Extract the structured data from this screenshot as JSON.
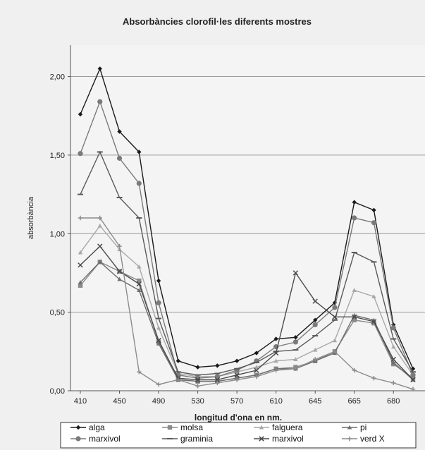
{
  "chart_data": {
    "type": "line",
    "title": "Absorbàncies clorofil·les diferents mostres",
    "xlabel": "longitud d'ona en nm.",
    "ylabel": "absorbància",
    "x": [
      410,
      430,
      450,
      470,
      490,
      510,
      530,
      550,
      570,
      590,
      610,
      630,
      645,
      655,
      665,
      675,
      680,
      690
    ],
    "x_tick_labels": [
      "410",
      "450",
      "490",
      "530",
      "570",
      "610",
      "645",
      "665",
      "680"
    ],
    "x_tick_positions": [
      410,
      450,
      490,
      530,
      570,
      610,
      645,
      665,
      680
    ],
    "y_tick_labels": [
      "0,00",
      "0,50",
      "1,00",
      "1,50",
      "2,00"
    ],
    "ylim": [
      0,
      2.2
    ],
    "grid": "horizontal",
    "legend_position": "bottom",
    "series": [
      {
        "name": "alga",
        "color": "#1a1a1a",
        "marker": "diamond",
        "values": [
          1.76,
          2.05,
          1.65,
          1.52,
          0.7,
          0.19,
          0.15,
          0.16,
          0.19,
          0.24,
          0.33,
          0.34,
          0.45,
          0.56,
          1.2,
          1.15,
          0.42,
          0.14
        ]
      },
      {
        "name": "molsa",
        "color": "#8a8a8a",
        "marker": "square",
        "values": [
          0.67,
          0.82,
          0.76,
          0.7,
          0.31,
          0.07,
          0.06,
          0.06,
          0.08,
          0.1,
          0.14,
          0.15,
          0.19,
          0.25,
          0.45,
          0.43,
          0.17,
          0.08
        ]
      },
      {
        "name": "falguera",
        "color": "#a8a8a8",
        "marker": "triangle",
        "values": [
          0.88,
          1.05,
          0.9,
          0.79,
          0.4,
          0.11,
          0.09,
          0.09,
          0.12,
          0.15,
          0.19,
          0.2,
          0.26,
          0.32,
          0.64,
          0.6,
          0.28,
          0.1
        ]
      },
      {
        "name": "pi",
        "color": "#6e6e6e",
        "marker": "triangle",
        "values": [
          0.69,
          0.82,
          0.71,
          0.64,
          0.3,
          0.07,
          0.06,
          0.06,
          0.08,
          0.1,
          0.14,
          0.14,
          0.19,
          0.24,
          0.48,
          0.45,
          0.18,
          0.07
        ]
      },
      {
        "name": "marxivol",
        "color": "#7a7a7a",
        "marker": "circle",
        "values": [
          1.51,
          1.84,
          1.48,
          1.32,
          0.56,
          0.1,
          0.08,
          0.09,
          0.13,
          0.19,
          0.28,
          0.31,
          0.42,
          0.53,
          1.1,
          1.07,
          0.4,
          0.1
        ]
      },
      {
        "name": "graminia",
        "color": "#5a5a5a",
        "marker": "dash",
        "values": [
          1.25,
          1.52,
          1.23,
          1.1,
          0.46,
          0.12,
          0.1,
          0.11,
          0.14,
          0.18,
          0.25,
          0.26,
          0.35,
          0.45,
          0.88,
          0.82,
          0.33,
          0.12
        ]
      },
      {
        "name": "marxivol",
        "color": "#4a4a4a",
        "marker": "x",
        "values": [
          0.8,
          0.92,
          0.76,
          0.68,
          0.32,
          0.08,
          0.07,
          0.07,
          0.1,
          0.13,
          0.24,
          0.75,
          0.57,
          0.47,
          0.47,
          0.44,
          0.2,
          0.07
        ]
      },
      {
        "name": "verd X",
        "color": "#8c8c8c",
        "marker": "plus",
        "values": [
          1.1,
          1.1,
          0.92,
          0.12,
          0.04,
          0.07,
          0.03,
          0.05,
          0.07,
          0.09,
          0.13,
          0.14,
          0.2,
          0.25,
          0.13,
          0.08,
          0.05,
          0.01
        ]
      }
    ]
  }
}
